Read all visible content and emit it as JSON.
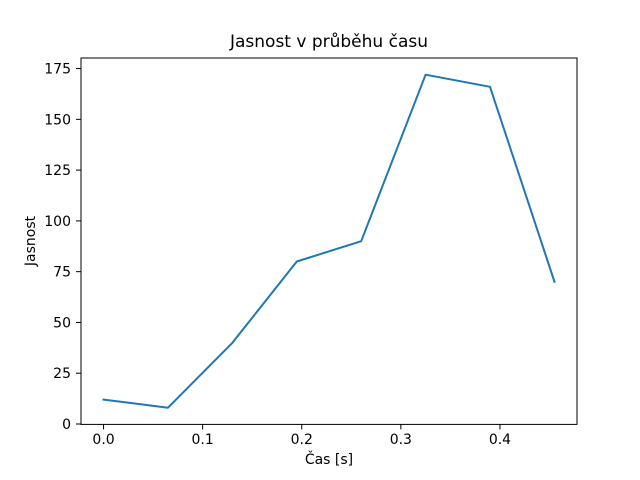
{
  "figure": {
    "background": "#ffffff"
  },
  "chart_data": {
    "type": "line",
    "title": "Jasnost v průběhu času",
    "xlabel": "Čas [s]",
    "ylabel": "Jasnost",
    "x": [
      0.0,
      0.065,
      0.13,
      0.195,
      0.26,
      0.325,
      0.39,
      0.455
    ],
    "y": [
      12,
      8,
      40,
      80,
      90,
      172,
      166,
      70
    ],
    "series_name": "Jasnost",
    "x_ticks": [
      0.0,
      0.1,
      0.2,
      0.3,
      0.4
    ],
    "x_tick_labels": [
      "0.0",
      "0.1",
      "0.2",
      "0.3",
      "0.4"
    ],
    "y_ticks": [
      0,
      25,
      50,
      75,
      100,
      125,
      150,
      175
    ],
    "y_tick_labels": [
      "0",
      "25",
      "50",
      "75",
      "100",
      "125",
      "150",
      "175"
    ],
    "xlim": [
      -0.02275,
      0.47775
    ],
    "ylim": [
      -0.2,
      180.2
    ],
    "line_color": "#1f77b4",
    "axis_color": "#000000",
    "plot_background": "#ffffff",
    "grid": false,
    "legend": null
  }
}
